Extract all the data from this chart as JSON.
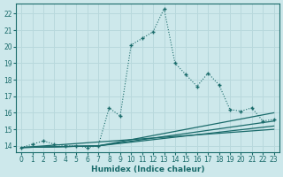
{
  "title": "",
  "xlabel": "Humidex (Indice chaleur)",
  "ylabel": "",
  "background_color": "#cde8eb",
  "grid_color": "#b8d8dc",
  "line_color": "#1a6b6b",
  "x_ticks": [
    0,
    1,
    2,
    3,
    4,
    5,
    6,
    7,
    8,
    9,
    10,
    11,
    12,
    13,
    14,
    15,
    16,
    17,
    18,
    19,
    20,
    21,
    22,
    23
  ],
  "y_ticks": [
    14,
    15,
    16,
    17,
    18,
    19,
    20,
    21,
    22
  ],
  "xlim": [
    -0.5,
    23.5
  ],
  "ylim": [
    13.6,
    22.6
  ],
  "main_x": [
    0,
    1,
    2,
    3,
    4,
    5,
    6,
    7,
    8,
    9,
    10,
    11,
    12,
    13,
    14,
    15,
    16,
    17,
    18,
    19,
    20,
    21,
    22,
    23
  ],
  "main_y": [
    13.9,
    14.1,
    14.3,
    14.1,
    14.0,
    14.0,
    13.9,
    14.0,
    16.3,
    15.8,
    20.1,
    20.5,
    20.9,
    22.3,
    19.0,
    18.3,
    17.6,
    18.4,
    17.7,
    16.2,
    16.1,
    16.3,
    15.5,
    15.6
  ],
  "line1_x": [
    0,
    7,
    23
  ],
  "line1_y": [
    13.9,
    14.0,
    16.0
  ],
  "line2_x": [
    0,
    7,
    23
  ],
  "line2_y": [
    13.9,
    14.0,
    15.5
  ],
  "line3_x": [
    0,
    7,
    23
  ],
  "line3_y": [
    13.9,
    14.0,
    15.2
  ],
  "line4_x": [
    0,
    23
  ],
  "line4_y": [
    13.9,
    15.0
  ]
}
